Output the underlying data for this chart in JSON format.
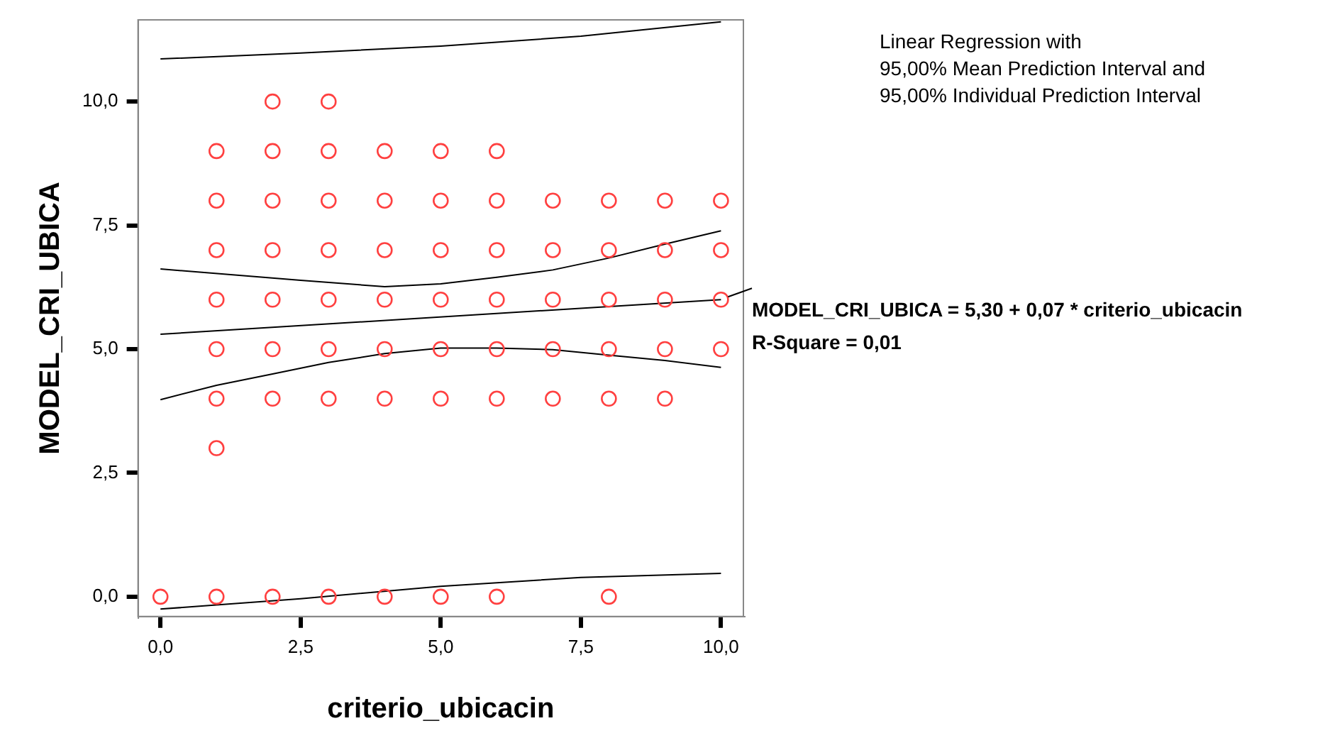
{
  "chart_data": {
    "type": "scatter",
    "xlabel": "criterio_ubicacin",
    "ylabel": "MODEL_CRI_UBICA",
    "xlim": [
      -0.4,
      10.4
    ],
    "ylim": [
      -0.4,
      11.65
    ],
    "xticks": [
      {
        "value": 0,
        "label": "0,0"
      },
      {
        "value": 2.5,
        "label": "2,5"
      },
      {
        "value": 5,
        "label": "5,0"
      },
      {
        "value": 7.5,
        "label": "7,5"
      },
      {
        "value": 10,
        "label": "10,0"
      }
    ],
    "yticks": [
      {
        "value": 0,
        "label": "0,0"
      },
      {
        "value": 2.5,
        "label": "2,5"
      },
      {
        "value": 5,
        "label": "5,0"
      },
      {
        "value": 7.5,
        "label": "7,5"
      },
      {
        "value": 10,
        "label": "10,0"
      }
    ],
    "grid": false,
    "legend": false,
    "marker": "circle",
    "annotations": [
      "Linear Regression with\n95,00% Mean Prediction Interval and\n95,00% Individual Prediction Interval",
      {
        "text": "MODEL_CRI_UBICA = 5,30 + 0,07 * criterio_ubicacin",
        "x": 10,
        "y": 6.0
      },
      "R-Square = 0,01"
    ],
    "series": [
      {
        "color": "#ff4040",
        "x": [
          0,
          1,
          1,
          1,
          1,
          1,
          1,
          1,
          1,
          2,
          2,
          2,
          2,
          2,
          2,
          2,
          2,
          3,
          3,
          3,
          3,
          3,
          3,
          3,
          3,
          4,
          4,
          4,
          4,
          4,
          4,
          4,
          5,
          5,
          5,
          5,
          5,
          5,
          5,
          6,
          6,
          6,
          6,
          6,
          6,
          6,
          7,
          7,
          7,
          7,
          7,
          8,
          8,
          8,
          8,
          8,
          8,
          9,
          9,
          9,
          9,
          9,
          10,
          10,
          10,
          10
        ],
        "values": [
          0,
          0,
          3,
          4,
          5,
          6,
          7,
          8,
          9,
          0,
          4,
          5,
          6,
          7,
          8,
          9,
          10,
          0,
          4,
          5,
          6,
          7,
          8,
          9,
          10,
          0,
          4,
          5,
          6,
          7,
          8,
          9,
          0,
          4,
          5,
          6,
          7,
          8,
          9,
          0,
          4,
          5,
          6,
          7,
          8,
          9,
          4,
          5,
          6,
          7,
          8,
          0,
          4,
          5,
          6,
          7,
          8,
          4,
          5,
          6,
          7,
          8,
          5,
          6,
          7,
          8
        ]
      },
      {
        "type": "line",
        "color": "#000000",
        "marker": "none",
        "x": [
          0,
          2.5,
          5,
          7.5,
          10
        ],
        "values": [
          10.86,
          10.98,
          11.12,
          11.32,
          11.61
        ]
      },
      {
        "type": "line",
        "color": "#000000",
        "marker": "none",
        "x": [
          0,
          2.5,
          4,
          5,
          6,
          7,
          8,
          9,
          10
        ],
        "values": [
          6.62,
          6.39,
          6.26,
          6.32,
          6.45,
          6.6,
          6.84,
          7.12,
          7.39
        ]
      },
      {
        "type": "line",
        "color": "#000000",
        "marker": "none",
        "x": [
          0,
          10
        ],
        "values": [
          5.3,
          6.0
        ]
      },
      {
        "type": "line",
        "color": "#000000",
        "marker": "none",
        "x": [
          0,
          1,
          2,
          3,
          4,
          5,
          6,
          7,
          8,
          9,
          10
        ],
        "values": [
          3.98,
          4.27,
          4.5,
          4.73,
          4.91,
          5.02,
          5.02,
          4.99,
          4.88,
          4.77,
          4.63
        ]
      },
      {
        "type": "line",
        "color": "#000000",
        "marker": "none",
        "x": [
          0,
          2.5,
          5,
          7.5,
          10
        ],
        "values": [
          -0.25,
          -0.04,
          0.21,
          0.39,
          0.47
        ]
      }
    ]
  }
}
